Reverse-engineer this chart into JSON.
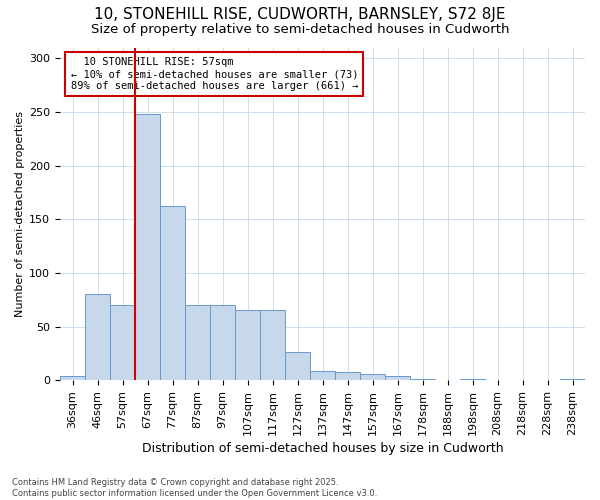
{
  "title1": "10, STONEHILL RISE, CUDWORTH, BARNSLEY, S72 8JE",
  "title2": "Size of property relative to semi-detached houses in Cudworth",
  "xlabel": "Distribution of semi-detached houses by size in Cudworth",
  "ylabel": "Number of semi-detached properties",
  "footnote": "Contains HM Land Registry data © Crown copyright and database right 2025.\nContains public sector information licensed under the Open Government Licence v3.0.",
  "bar_labels": [
    "36sqm",
    "46sqm",
    "57sqm",
    "67sqm",
    "77sqm",
    "87sqm",
    "97sqm",
    "107sqm",
    "117sqm",
    "127sqm",
    "137sqm",
    "147sqm",
    "157sqm",
    "167sqm",
    "178sqm",
    "188sqm",
    "198sqm",
    "208sqm",
    "218sqm",
    "228sqm",
    "238sqm"
  ],
  "bar_values": [
    4,
    80,
    70,
    248,
    162,
    70,
    70,
    65,
    65,
    26,
    9,
    8,
    6,
    4,
    1,
    0,
    1,
    0,
    0,
    0,
    1
  ],
  "bar_color": "#c8d8eb",
  "bar_edge_color": "#6699cc",
  "property_value": "57sqm",
  "property_label": "10 STONEHILL RISE: 57sqm",
  "pct_smaller": 10,
  "n_smaller": 73,
  "pct_larger": 89,
  "n_larger": 661,
  "vline_color": "#cc0000",
  "annotation_box_color": "#cc0000",
  "background_color": "#ffffff",
  "ylim": [
    0,
    310
  ],
  "title1_fontsize": 11,
  "title2_fontsize": 9.5,
  "tick_fontsize": 8,
  "ylabel_fontsize": 8,
  "xlabel_fontsize": 9,
  "annot_fontsize": 7.5,
  "footnote_fontsize": 6
}
